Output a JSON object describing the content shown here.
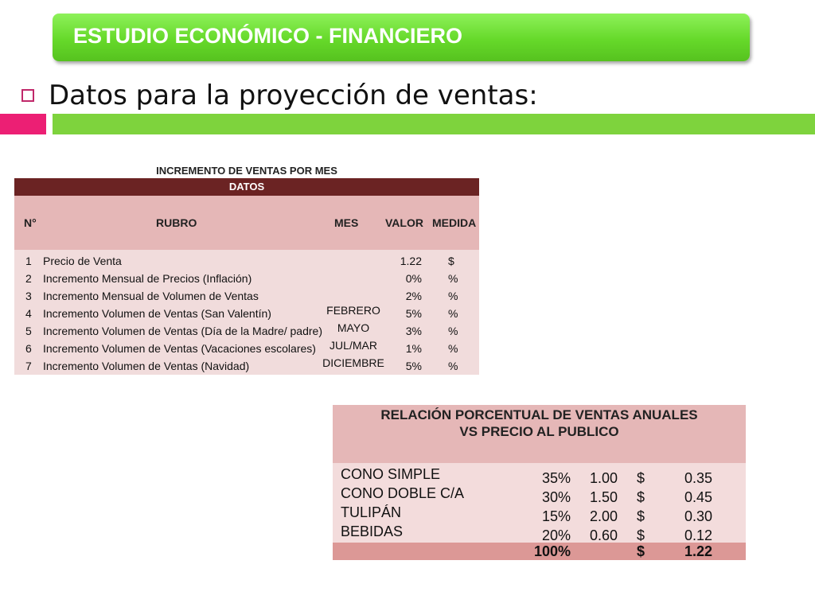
{
  "header": {
    "title": "ESTUDIO ECONÓMICO - FINANCIERO"
  },
  "subtitle": "Datos para la proyección de ventas:",
  "table1": {
    "caption": "INCREMENTO DE VENTAS POR MES",
    "section": "DATOS",
    "columns": {
      "n": "N°",
      "rubro": "RUBRO",
      "mes": "MES",
      "valor": "VALOR",
      "medida": "MEDIDA"
    },
    "rows": [
      {
        "n": "1",
        "rubro": "Precio de Venta",
        "mes": "",
        "valor": "1.22",
        "medida": "$"
      },
      {
        "n": "2",
        "rubro": "Incremento Mensual de Precios (Inflación)",
        "mes": "",
        "valor": "0%",
        "medida": "%"
      },
      {
        "n": "3",
        "rubro": "Incremento Mensual de Volumen de Ventas",
        "mes": "",
        "valor": "2%",
        "medida": "%"
      },
      {
        "n": "4",
        "rubro": "Incremento Volumen de Ventas (San Valentín)",
        "mes": "FEBRERO",
        "valor": "5%",
        "medida": "%"
      },
      {
        "n": "5",
        "rubro": "Incremento Volumen de Ventas (Día de la Madre/ padre)",
        "mes": "MAYO",
        "valor": "3%",
        "medida": "%"
      },
      {
        "n": "6",
        "rubro": "Incremento Volumen de Ventas (Vacaciones escolares)",
        "mes": "JUL/MAR",
        "valor": "1%",
        "medida": "%"
      },
      {
        "n": "7",
        "rubro": "Incremento Volumen de Ventas (Navidad)",
        "mes": "DICIEMBRE",
        "valor": "5%",
        "medida": "%"
      }
    ]
  },
  "table2": {
    "title_line1": "RELACIÓN PORCENTUAL DE VENTAS ANUALES",
    "title_line2": "VS PRECIO AL PUBLICO",
    "rows": [
      {
        "name": "CONO SIMPLE",
        "pct": "35%",
        "price": "1.00",
        "currency": "$",
        "value": "0.35"
      },
      {
        "name": "CONO DOBLE C/A",
        "pct": "30%",
        "price": "1.50",
        "currency": "$",
        "value": "0.45"
      },
      {
        "name": "TULIPÁN",
        "pct": "15%",
        "price": "2.00",
        "currency": "$",
        "value": "0.30"
      },
      {
        "name": "BEBIDAS",
        "pct": "20%",
        "price": "0.60",
        "currency": "$",
        "value": "0.12"
      }
    ],
    "total": {
      "pct": "100%",
      "currency": "$",
      "value": "1.22"
    }
  }
}
